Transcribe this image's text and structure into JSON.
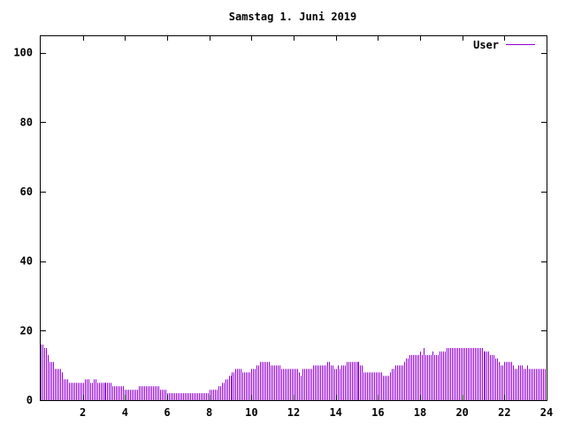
{
  "chart_data": {
    "type": "bar",
    "title": "Samstag 1. Juni 2019",
    "xlabel": "",
    "ylabel": "",
    "xlim": [
      0,
      24
    ],
    "ylim": [
      0,
      105
    ],
    "x_ticks": [
      "2",
      "4",
      "6",
      "8",
      "10",
      "12",
      "14",
      "16",
      "18",
      "20",
      "22",
      "24"
    ],
    "y_ticks": [
      "0",
      "20",
      "40",
      "60",
      "80",
      "100"
    ],
    "grid": false,
    "legend_position": "top-right",
    "bar_color": "#9400d3",
    "series": [
      {
        "name": "User",
        "interval_minutes": 5,
        "values": [
          16,
          16,
          15,
          15,
          13,
          11,
          11,
          11,
          9,
          9,
          9,
          9,
          8,
          6,
          6,
          6,
          5,
          5,
          5,
          5,
          5,
          5,
          5,
          5,
          5,
          6,
          6,
          6,
          5,
          5,
          6,
          6,
          5,
          5,
          5,
          5,
          5,
          5,
          5,
          5,
          5,
          4,
          4,
          4,
          4,
          4,
          4,
          4,
          3,
          3,
          3,
          3,
          3,
          3,
          3,
          3,
          4,
          4,
          4,
          4,
          4,
          4,
          4,
          4,
          4,
          4,
          4,
          4,
          3,
          3,
          3,
          3,
          2,
          2,
          2,
          2,
          2,
          2,
          2,
          2,
          2,
          2,
          2,
          2,
          2,
          2,
          2,
          2,
          2,
          2,
          2,
          2,
          2,
          2,
          2,
          2,
          3,
          3,
          3,
          3,
          3,
          4,
          4,
          5,
          5,
          6,
          6,
          7,
          7,
          8,
          8,
          9,
          9,
          9,
          9,
          8,
          8,
          8,
          8,
          8,
          9,
          9,
          9,
          10,
          10,
          11,
          11,
          11,
          11,
          11,
          11,
          10,
          10,
          10,
          10,
          10,
          10,
          9,
          9,
          9,
          9,
          9,
          9,
          9,
          9,
          9,
          9,
          8,
          7,
          9,
          9,
          9,
          9,
          9,
          9,
          10,
          10,
          10,
          10,
          10,
          10,
          10,
          10,
          11,
          11,
          10,
          10,
          9,
          9,
          10,
          9,
          10,
          10,
          10,
          11,
          11,
          11,
          11,
          11,
          11,
          11,
          11,
          10,
          10,
          8,
          8,
          8,
          8,
          8,
          8,
          8,
          8,
          8,
          8,
          8,
          7,
          7,
          7,
          7,
          8,
          9,
          9,
          10,
          10,
          10,
          10,
          10,
          11,
          12,
          12,
          13,
          13,
          13,
          13,
          13,
          13,
          14,
          13,
          15,
          13,
          13,
          13,
          13,
          14,
          13,
          13,
          13,
          14,
          14,
          14,
          14,
          15,
          15,
          15,
          15,
          15,
          15,
          15,
          15,
          15,
          15,
          15,
          15,
          15,
          15,
          15,
          15,
          15,
          15,
          15,
          15,
          15,
          14,
          14,
          14,
          14,
          13,
          13,
          13,
          12,
          12,
          11,
          10,
          10,
          11,
          11,
          11,
          11,
          11,
          10,
          9,
          9,
          10,
          10,
          10,
          9,
          9,
          10,
          9,
          9,
          9,
          9,
          9,
          9,
          9,
          9,
          9,
          9
        ]
      }
    ]
  }
}
